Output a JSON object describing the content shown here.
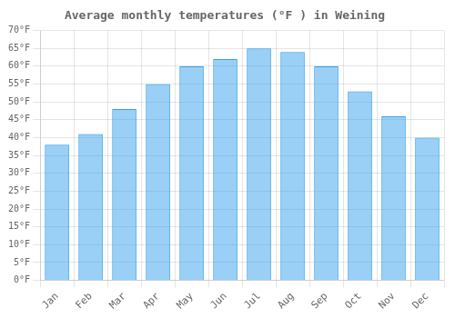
{
  "chart_data": {
    "type": "bar",
    "title": "Average monthly temperatures (°F ) in Weining",
    "categories": [
      "Jan",
      "Feb",
      "Mar",
      "Apr",
      "May",
      "Jun",
      "Jul",
      "Aug",
      "Sep",
      "Oct",
      "Nov",
      "Dec"
    ],
    "values": [
      38,
      41,
      48,
      55,
      60,
      62,
      65,
      64,
      60,
      53,
      46,
      40
    ],
    "ylim": [
      0,
      70
    ],
    "yticks": [
      {
        "value": 0,
        "label": "0°F"
      },
      {
        "value": 5,
        "label": "5°F"
      },
      {
        "value": 10,
        "label": "10°F"
      },
      {
        "value": 15,
        "label": "15°F"
      },
      {
        "value": 20,
        "label": "20°F"
      },
      {
        "value": 25,
        "label": "25°F"
      },
      {
        "value": 30,
        "label": "30°F"
      },
      {
        "value": 35,
        "label": "35°F"
      },
      {
        "value": 40,
        "label": "40°F"
      },
      {
        "value": 45,
        "label": "45°F"
      },
      {
        "value": 50,
        "label": "50°F"
      },
      {
        "value": 55,
        "label": "55°F"
      },
      {
        "value": 60,
        "label": "60°F"
      },
      {
        "value": 65,
        "label": "65°F"
      },
      {
        "value": 70,
        "label": "70°F"
      }
    ],
    "grid": true
  }
}
